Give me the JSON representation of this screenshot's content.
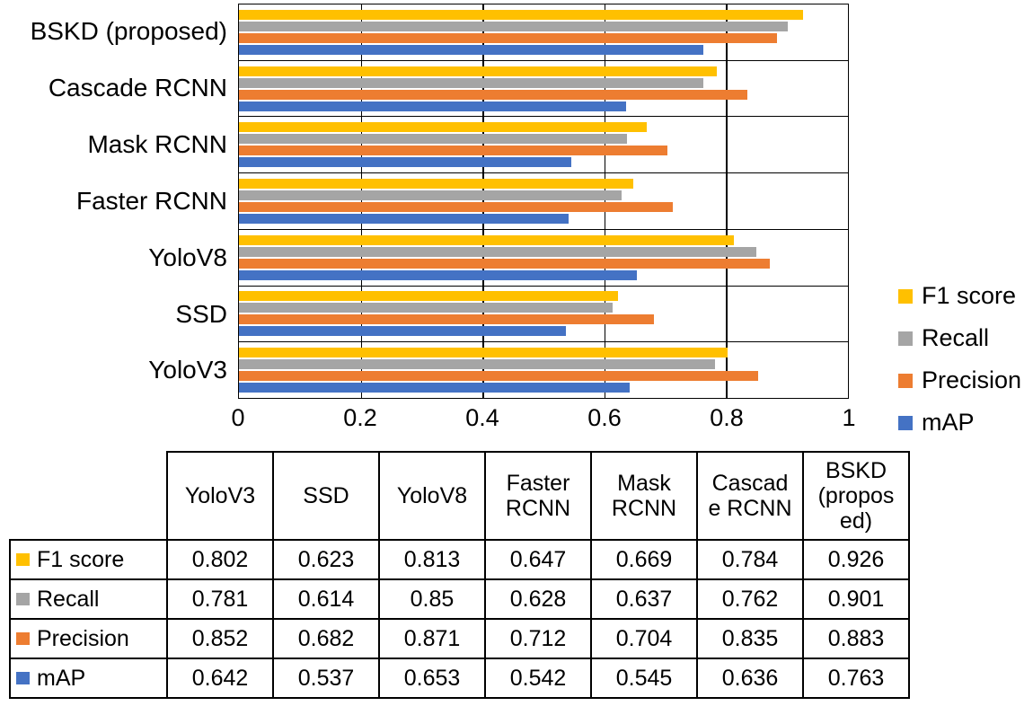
{
  "chart_data": {
    "type": "bar",
    "orientation": "horizontal",
    "title": "",
    "xlabel": "",
    "ylabel": "",
    "xlim": [
      0,
      1
    ],
    "x_ticks": [
      "0",
      "0.2",
      "0.4",
      "0.6",
      "0.8",
      "1"
    ],
    "grid": true,
    "legend_position": "right",
    "categories": [
      "YoloV3",
      "SSD",
      "YoloV8",
      "Faster RCNN",
      "Mask RCNN",
      "Cascade RCNN",
      "BSKD (proposed)"
    ],
    "series": [
      {
        "name": "F1 score",
        "color": "#FFC000",
        "values": [
          0.802,
          0.623,
          0.813,
          0.647,
          0.669,
          0.784,
          0.926
        ]
      },
      {
        "name": "Recall",
        "color": "#A5A5A5",
        "values": [
          0.781,
          0.614,
          0.85,
          0.628,
          0.637,
          0.762,
          0.901
        ]
      },
      {
        "name": "Precision",
        "color": "#ED7D31",
        "values": [
          0.852,
          0.682,
          0.871,
          0.712,
          0.704,
          0.835,
          0.883
        ]
      },
      {
        "name": "mAP",
        "color": "#4472C4",
        "values": [
          0.642,
          0.537,
          0.653,
          0.542,
          0.545,
          0.636,
          0.763
        ]
      }
    ]
  },
  "table": {
    "column_headers": [
      "",
      "YoloV3",
      "SSD",
      "YoloV8",
      "Faster RCNN",
      "Mask RCNN",
      "Cascade RCNN",
      "BSKD (proposed)"
    ],
    "rows": [
      {
        "label": "F1 score",
        "color": "#FFC000",
        "values": [
          "0.802",
          "0.623",
          "0.813",
          "0.647",
          "0.669",
          "0.784",
          "0.926"
        ]
      },
      {
        "label": "Recall",
        "color": "#A5A5A5",
        "values": [
          "0.781",
          "0.614",
          "0.85",
          "0.628",
          "0.637",
          "0.762",
          "0.901"
        ]
      },
      {
        "label": "Precision",
        "color": "#ED7D31",
        "values": [
          "0.852",
          "0.682",
          "0.871",
          "0.712",
          "0.704",
          "0.835",
          "0.883"
        ]
      },
      {
        "label": "mAP",
        "color": "#4472C4",
        "values": [
          "0.642",
          "0.537",
          "0.653",
          "0.542",
          "0.545",
          "0.636",
          "0.763"
        ]
      }
    ]
  }
}
